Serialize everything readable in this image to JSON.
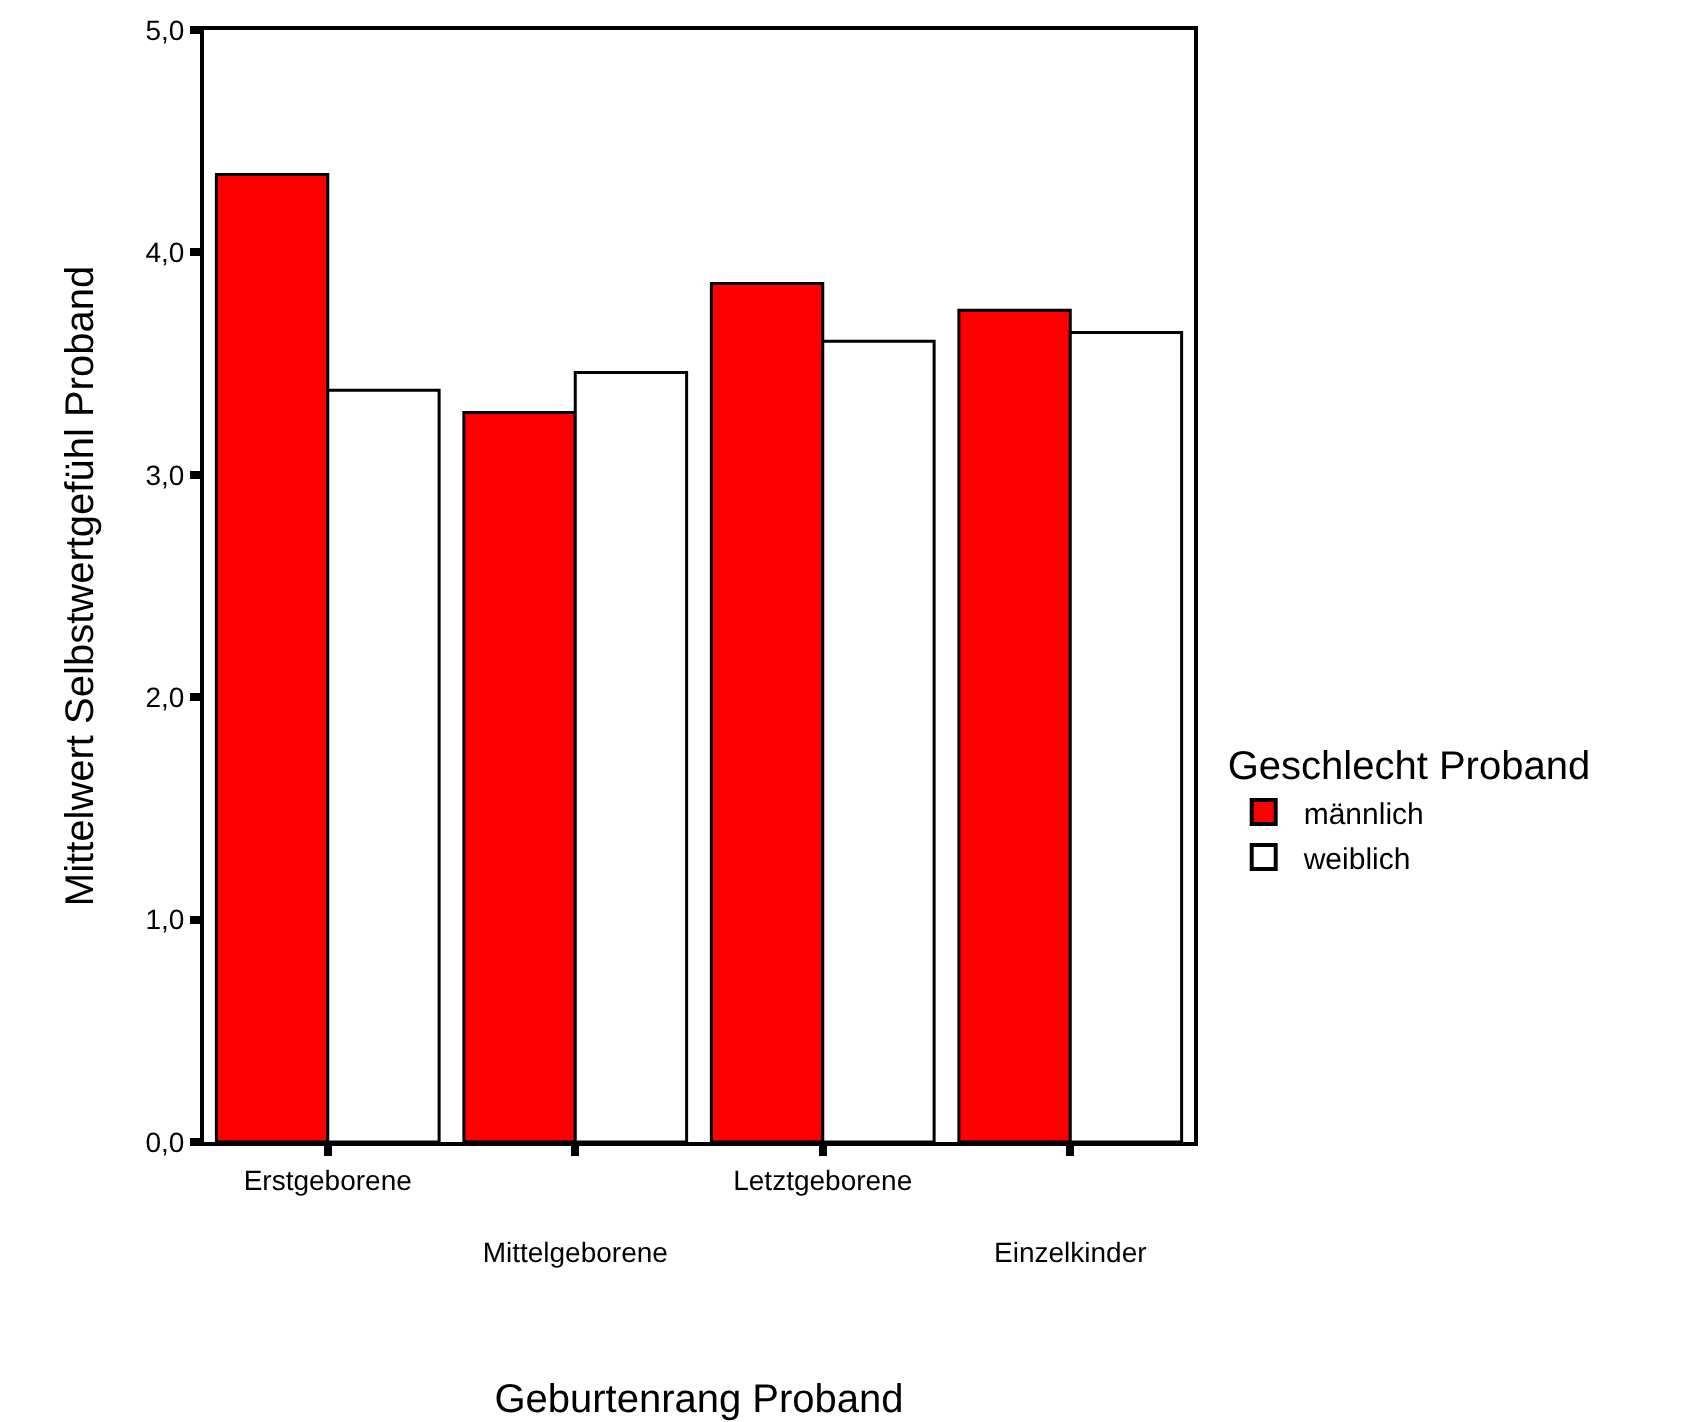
{
  "chart_data": {
    "type": "bar",
    "xlabel": "Geburtenrang Proband",
    "ylabel": "Mittelwert Selbstwertgefühl Proband",
    "legend_title": "Geschlecht Proband",
    "categories": [
      "Erstgeborene",
      "Mittelgeborene",
      "Letztgeborene",
      "Einzelkinder"
    ],
    "series": [
      {
        "name": "männlich",
        "color": "#ff0000",
        "values": [
          4.35,
          3.28,
          3.86,
          3.74
        ]
      },
      {
        "name": "weiblich",
        "color": "#ffffff",
        "values": [
          3.38,
          3.46,
          3.6,
          3.64
        ]
      }
    ],
    "ylim": [
      0,
      5
    ],
    "yticks": [
      {
        "value": 0,
        "label": "0,0"
      },
      {
        "value": 1,
        "label": "1,0"
      },
      {
        "value": 2,
        "label": "2,0"
      },
      {
        "value": 3,
        "label": "3,0"
      },
      {
        "value": 4,
        "label": "4,0"
      },
      {
        "value": 5,
        "label": "5,0"
      }
    ],
    "grid": false,
    "legend": "right"
  }
}
